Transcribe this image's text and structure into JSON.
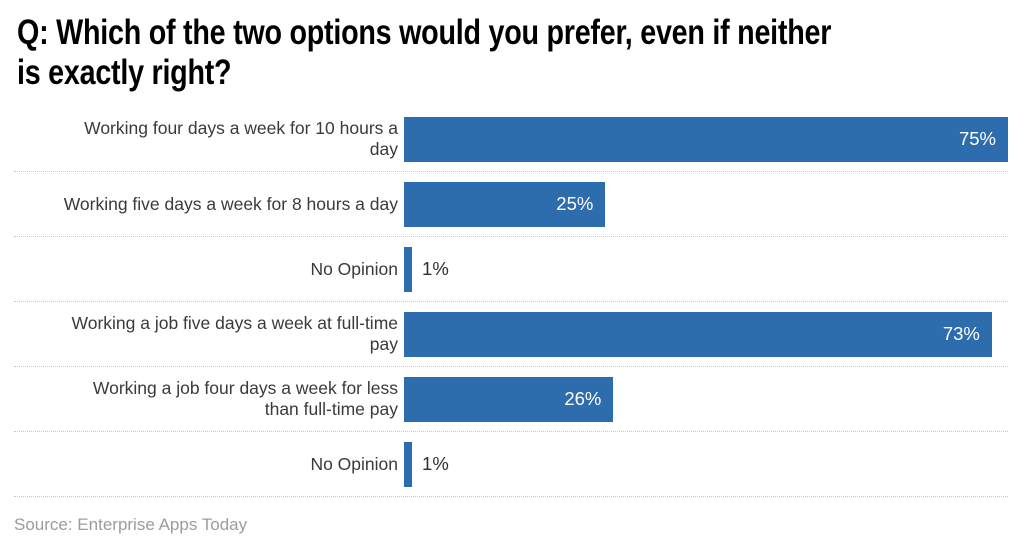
{
  "header": {
    "title": "Q: Which of the two options would you prefer, even if neither\nis exactly right?"
  },
  "footer": {
    "source": "Source: Enterprise Apps Today"
  },
  "colors": {
    "background": "#ffffff",
    "title": "#000000",
    "label": "#3a3a3a",
    "bar": "#2d6cad",
    "value_inside": "#ffffff",
    "value_outside": "#2f2f2f",
    "separator": "#c9c9c9",
    "source": "#9c9c9c"
  },
  "chart_data": {
    "type": "bar",
    "orientation": "horizontal",
    "title": "Q: Which of the two options would you prefer, even if neither is exactly right?",
    "categories": [
      "Working four days a week for 10 hours a day",
      "Working five days a week for 8 hours a day",
      "No Opinion",
      "Working a job five days a week at full-time pay",
      "Working a job four days a week for less than full-time pay",
      "No Opinion"
    ],
    "display_categories": [
      "Working four days a week for 10 hours a\nday",
      "Working five days a week for 8 hours a day",
      "No Opinion",
      "Working a job five days a week at full-time\npay",
      "Working a job four days a week for less\nthan full-time pay",
      "No Opinion"
    ],
    "values": [
      75,
      25,
      1,
      73,
      26,
      1
    ],
    "value_labels": [
      "75%",
      "25%",
      "1%",
      "73%",
      "26%",
      "1%"
    ],
    "xlabel": "",
    "ylabel": "",
    "xlim": [
      0,
      75
    ],
    "grid": "dotted row separators, no axis lines, no tick labels",
    "legend": "none",
    "source": "Enterprise Apps Today"
  }
}
